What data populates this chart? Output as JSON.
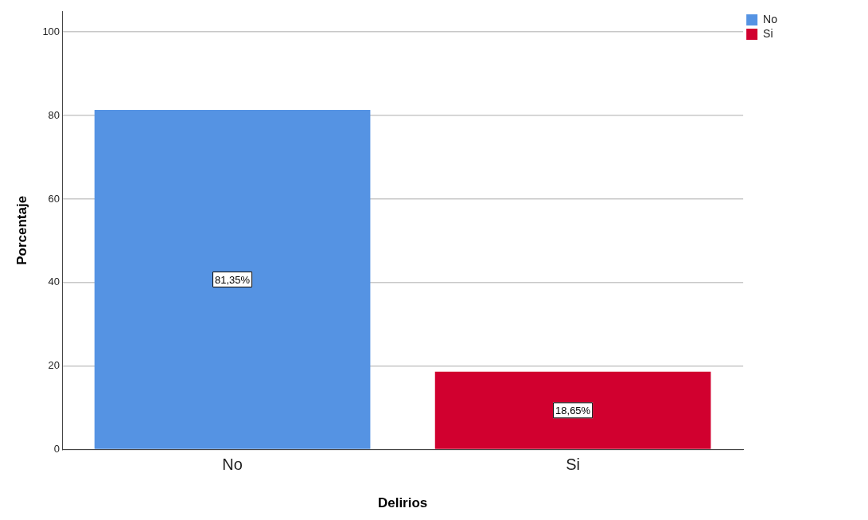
{
  "chart_data": {
    "type": "bar",
    "xlabel": "Delirios",
    "ylabel": "Porcentaje",
    "categories": [
      "No",
      "Si"
    ],
    "series": [
      {
        "name": "No",
        "color": "#5593e3",
        "values": [
          81.35,
          null
        ],
        "value_labels": [
          "81,35%",
          null
        ]
      },
      {
        "name": "Si",
        "color": "#d1002f",
        "values": [
          null,
          18.65
        ],
        "value_labels": [
          null,
          "18,65%"
        ]
      }
    ],
    "ylim": [
      0,
      105
    ],
    "yticks": [
      0,
      20,
      40,
      60,
      80,
      100
    ],
    "grid": "y",
    "legend": "top right"
  }
}
